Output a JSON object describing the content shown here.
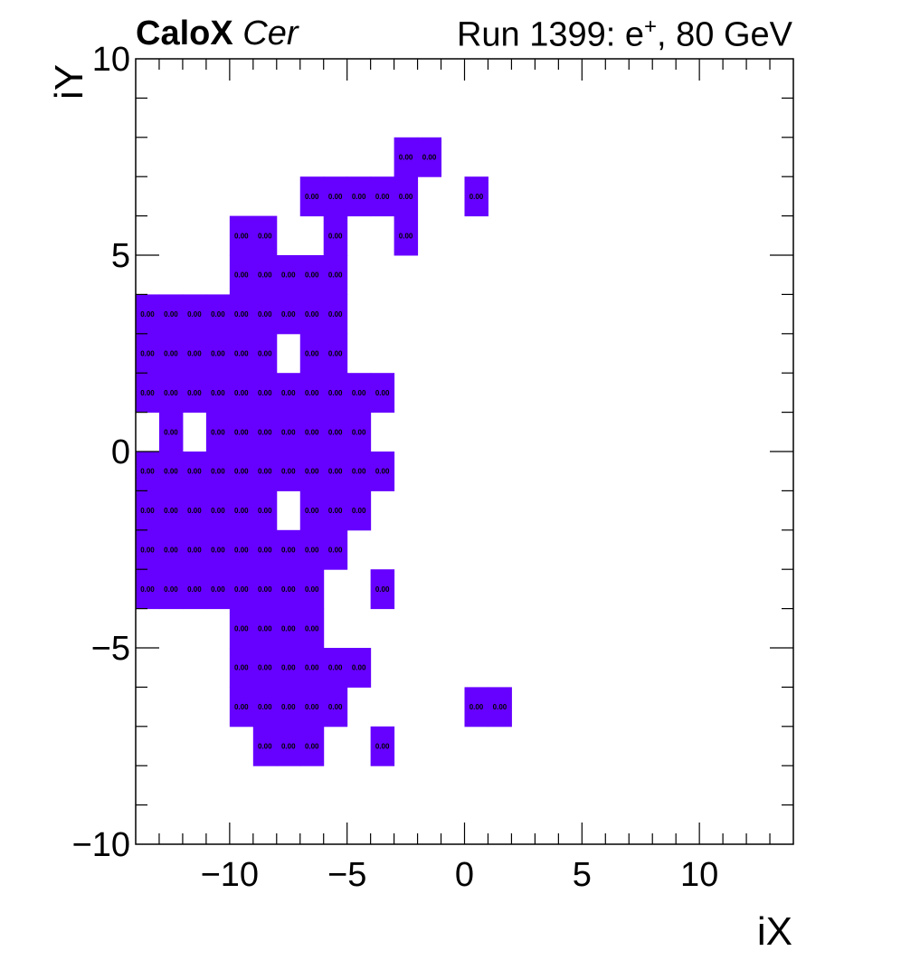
{
  "title": {
    "left_bold": "CaloX",
    "left_italic": "Cer",
    "right_text": "Run 1399: e",
    "right_sup": "+",
    "right_tail": ", 80 GeV"
  },
  "chart_data": {
    "type": "heatmap",
    "xlabel": "iX",
    "ylabel": "iY",
    "xlim": [
      -14,
      14
    ],
    "ylim": [
      -10,
      10
    ],
    "xticks": [
      -10,
      -5,
      0,
      5,
      10
    ],
    "yticks": [
      -10,
      -5,
      0,
      5,
      10
    ],
    "xtick_labels": [
      "−10",
      "−5",
      "0",
      "5",
      "10"
    ],
    "ytick_labels": [
      "−10",
      "−5",
      "0",
      "5",
      "10"
    ],
    "fill_color": "#6600ff",
    "cell_label": "0.00",
    "rows": [
      {
        "iy": 7,
        "ix": [
          -3,
          -2
        ]
      },
      {
        "iy": 6,
        "ix": [
          -7,
          -6,
          -5,
          -4,
          -3,
          0
        ]
      },
      {
        "iy": 5,
        "ix": [
          -10,
          -9,
          -6,
          -3
        ]
      },
      {
        "iy": 4,
        "ix": [
          -10,
          -9,
          -8,
          -7,
          -6
        ]
      },
      {
        "iy": 3,
        "ix": [
          -14,
          -13,
          -12,
          -11,
          -10,
          -9,
          -8,
          -7,
          -6
        ]
      },
      {
        "iy": 2,
        "ix": [
          -14,
          -13,
          -12,
          -11,
          -10,
          -9,
          -7,
          -6
        ]
      },
      {
        "iy": 1,
        "ix": [
          -14,
          -13,
          -12,
          -11,
          -10,
          -9,
          -8,
          -7,
          -6,
          -5,
          -4
        ]
      },
      {
        "iy": 0,
        "ix": [
          -13,
          -11,
          -10,
          -9,
          -8,
          -7,
          -6,
          -5
        ]
      },
      {
        "iy": -1,
        "ix": [
          -14,
          -13,
          -12,
          -11,
          -10,
          -9,
          -8,
          -7,
          -6,
          -5,
          -4
        ]
      },
      {
        "iy": -2,
        "ix": [
          -14,
          -13,
          -12,
          -11,
          -10,
          -9,
          -7,
          -6,
          -5
        ]
      },
      {
        "iy": -3,
        "ix": [
          -14,
          -13,
          -12,
          -11,
          -10,
          -9,
          -8,
          -7,
          -6
        ]
      },
      {
        "iy": -4,
        "ix": [
          -14,
          -13,
          -12,
          -11,
          -10,
          -9,
          -8,
          -7,
          -4
        ]
      },
      {
        "iy": -5,
        "ix": [
          -10,
          -9,
          -8,
          -7
        ]
      },
      {
        "iy": -6,
        "ix": [
          -10,
          -9,
          -8,
          -7,
          -6,
          -5
        ]
      },
      {
        "iy": -7,
        "ix": [
          -10,
          -9,
          -8,
          -7,
          -6,
          0,
          1
        ]
      },
      {
        "iy": -8,
        "ix": [
          -9,
          -8,
          -7,
          -4
        ]
      }
    ]
  }
}
